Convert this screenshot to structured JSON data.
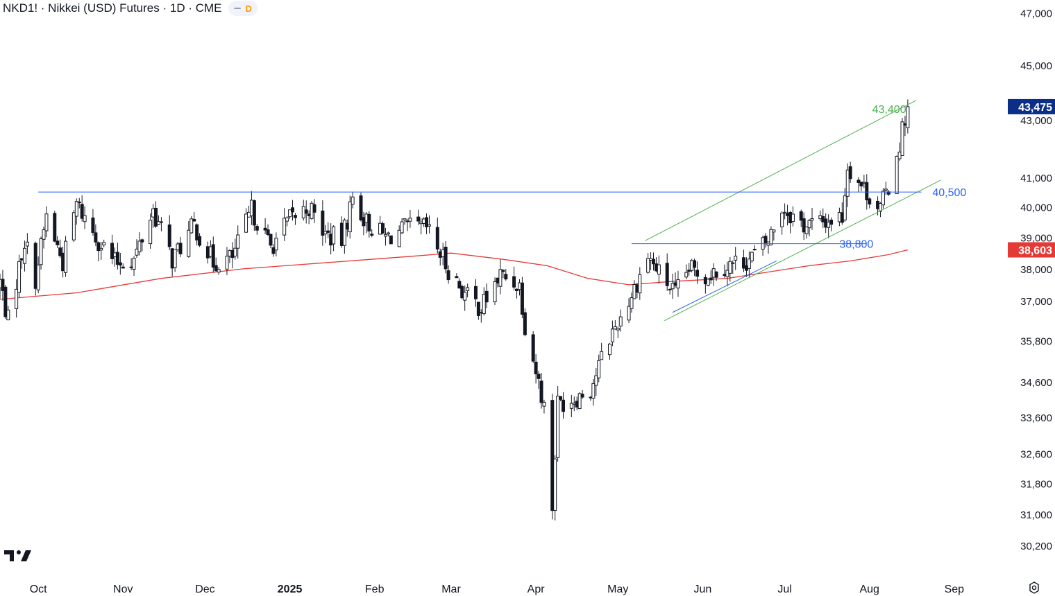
{
  "header": {
    "title": "NKD1! · Nikkei (USD) Futures · 1D · CME",
    "interval_badge": "D"
  },
  "chart_data": {
    "type": "candlestick",
    "y_scale": "log",
    "ylim": [
      29500,
      47500
    ],
    "xlim": [
      "2024-09-17",
      "2025-09-15"
    ],
    "y_ticks": [
      47000,
      45000,
      43000,
      41000,
      40000,
      39000,
      38000,
      37000,
      35800,
      34600,
      33600,
      32600,
      31800,
      31000,
      30200
    ],
    "y_tick_labels": [
      "47,000",
      "45,000",
      "43,000",
      "41,000",
      "40,000",
      "39,000",
      "38,000",
      "37,000",
      "35,800",
      "34,600",
      "33,600",
      "32,600",
      "31,800",
      "31,000",
      "30,200"
    ],
    "x_ticks": [
      "2024-10-01",
      "2024-11-01",
      "2024-12-01",
      "2025-01-01",
      "2025-02-01",
      "2025-03-01",
      "2025-04-01",
      "2025-05-01",
      "2025-06-01",
      "2025-07-01",
      "2025-08-01",
      "2025-09-01"
    ],
    "x_tick_labels": [
      "Oct",
      "Nov",
      "Dec",
      "2025",
      "Feb",
      "Mar",
      "Apr",
      "May",
      "Jun",
      "Jul",
      "Aug",
      "Sep"
    ],
    "grid": false,
    "colors": {
      "up": "#ffffff",
      "down": "#131722",
      "ma": "#e53935",
      "channel": "#4caf50",
      "support": "#2962ff"
    },
    "candles_path": [
      [
        "2024-09-17",
        37600
      ],
      [
        "2024-09-20",
        36400
      ],
      [
        "2024-09-26",
        38900
      ],
      [
        "2024-09-30",
        37700
      ],
      [
        "2024-10-04",
        39700
      ],
      [
        "2024-10-10",
        38200
      ],
      [
        "2024-10-15",
        40100
      ],
      [
        "2024-10-22",
        39050
      ],
      [
        "2024-10-29",
        38200
      ],
      [
        "2024-11-05",
        38300
      ],
      [
        "2024-11-12",
        39900
      ],
      [
        "2024-11-19",
        38300
      ],
      [
        "2024-11-27",
        39400
      ],
      [
        "2024-12-04",
        38200
      ],
      [
        "2024-12-11",
        38350
      ],
      [
        "2024-12-18",
        39900
      ],
      [
        "2024-12-25",
        38700
      ],
      [
        "2025-01-01",
        39600
      ],
      [
        "2025-01-08",
        40000
      ],
      [
        "2025-01-14",
        39100
      ],
      [
        "2025-01-20",
        38900
      ],
      [
        "2025-01-24",
        40300
      ],
      [
        "2025-01-29",
        39500
      ],
      [
        "2025-02-05",
        39000
      ],
      [
        "2025-02-13",
        39300
      ],
      [
        "2025-02-20",
        39300
      ],
      [
        "2025-02-28",
        38000
      ],
      [
        "2025-03-06",
        37200
      ],
      [
        "2025-03-12",
        36800
      ],
      [
        "2025-03-19",
        37800
      ],
      [
        "2025-03-26",
        37500
      ],
      [
        "2025-03-28",
        36300
      ],
      [
        "2025-04-04",
        33900
      ],
      [
        "2025-04-07",
        31200
      ],
      [
        "2025-04-09",
        34000
      ],
      [
        "2025-04-14",
        34100
      ],
      [
        "2025-04-21",
        34400
      ],
      [
        "2025-04-28",
        35900
      ],
      [
        "2025-05-05",
        37000
      ],
      [
        "2025-05-12",
        38400
      ],
      [
        "2025-05-15",
        38000
      ],
      [
        "2025-05-22",
        37200
      ],
      [
        "2025-05-27",
        38000
      ],
      [
        "2025-06-02",
        37800
      ],
      [
        "2025-06-09",
        38100
      ],
      [
        "2025-06-18",
        38300
      ],
      [
        "2025-06-25",
        38900
      ],
      [
        "2025-06-30",
        40000
      ],
      [
        "2025-07-08",
        39400
      ],
      [
        "2025-07-15",
        39500
      ],
      [
        "2025-07-22",
        39700
      ],
      [
        "2025-07-24",
        41400
      ],
      [
        "2025-07-31",
        40500
      ],
      [
        "2025-08-05",
        39950
      ],
      [
        "2025-08-08",
        40700
      ],
      [
        "2025-08-12",
        42200
      ],
      [
        "2025-08-14",
        43100
      ],
      [
        "2025-08-15",
        43475
      ]
    ],
    "ma_path": [
      [
        "2024-09-17",
        37050
      ],
      [
        "2024-10-15",
        37250
      ],
      [
        "2024-11-15",
        37700
      ],
      [
        "2024-12-15",
        38000
      ],
      [
        "2025-01-15",
        38200
      ],
      [
        "2025-02-15",
        38400
      ],
      [
        "2025-03-01",
        38500
      ],
      [
        "2025-03-20",
        38300
      ],
      [
        "2025-04-05",
        38100
      ],
      [
        "2025-04-20",
        37700
      ],
      [
        "2025-05-05",
        37500
      ],
      [
        "2025-05-20",
        37600
      ],
      [
        "2025-06-10",
        37700
      ],
      [
        "2025-06-25",
        37900
      ],
      [
        "2025-07-10",
        38100
      ],
      [
        "2025-07-25",
        38250
      ],
      [
        "2025-08-08",
        38450
      ],
      [
        "2025-08-15",
        38603
      ]
    ],
    "annotations": [
      {
        "id": "upper-channel",
        "type": "trendline",
        "from": [
          "2025-05-11",
          38900
        ],
        "to": [
          "2025-08-18",
          43700
        ],
        "label": "43,400",
        "label_at": [
          "2025-08-02",
          43400
        ]
      },
      {
        "id": "lower-channel",
        "type": "trendline",
        "from": [
          "2025-05-18",
          36400
        ],
        "to": [
          "2025-08-27",
          40900
        ]
      },
      {
        "id": "short-support",
        "type": "trendline",
        "from": [
          "2025-05-21",
          36650
        ],
        "to": [
          "2025-06-28",
          38250
        ]
      },
      {
        "id": "resistance-40500",
        "type": "hline",
        "from": [
          "2024-10-01",
          40500
        ],
        "to": [
          "2025-08-20",
          40500
        ],
        "label": "40,500",
        "label_at": [
          "2025-08-24",
          40500
        ]
      },
      {
        "id": "level-38800",
        "type": "hline",
        "from": [
          "2025-05-06",
          38800
        ],
        "to": [
          "2025-07-31",
          38800
        ],
        "label": "38,800",
        "label_at": [
          "2025-07-21",
          38800
        ]
      }
    ],
    "price_tags": [
      {
        "id": "last-price",
        "value": 43475,
        "label": "43,475",
        "color": "#0b2e88"
      },
      {
        "id": "ma-value",
        "value": 38603,
        "label": "38,603",
        "color": "#e53935"
      }
    ]
  }
}
